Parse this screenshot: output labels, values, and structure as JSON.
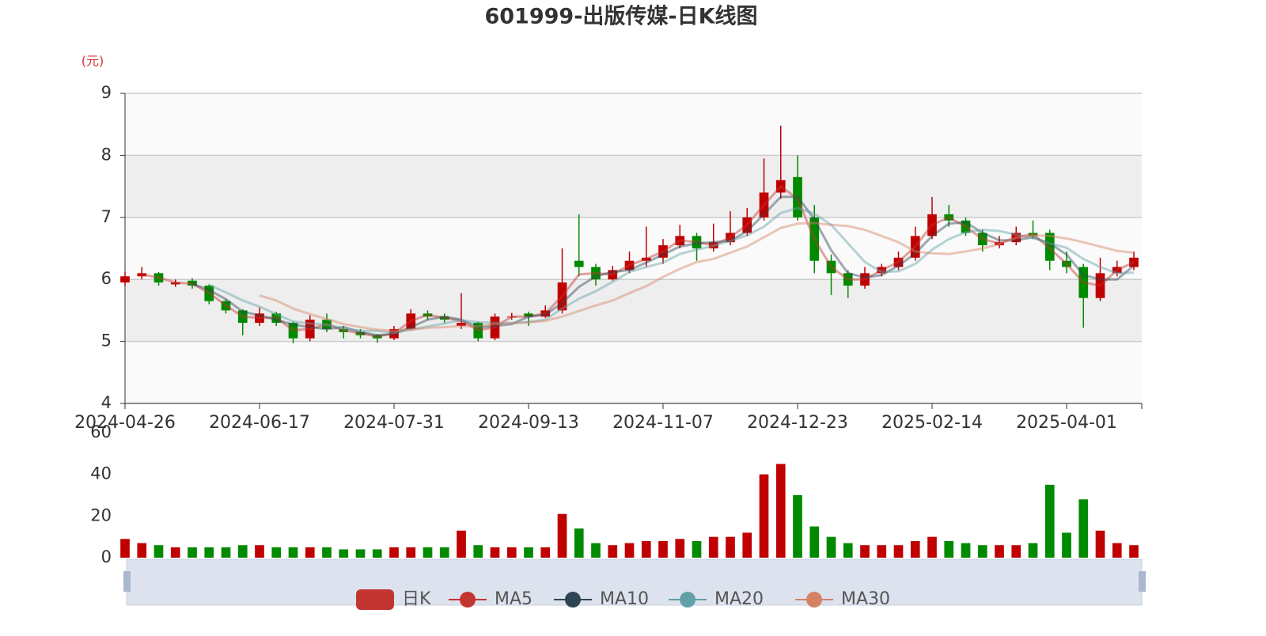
{
  "chart_data": {
    "type": "candlestick",
    "title": "601999-出版传媒-日K线图",
    "y_unit": "(元)",
    "categories": [
      "2024-04-26",
      null,
      null,
      null,
      null,
      null,
      null,
      null,
      "2024-06-17",
      null,
      null,
      null,
      null,
      null,
      null,
      null,
      "2024-07-31",
      null,
      null,
      null,
      null,
      null,
      null,
      null,
      "2024-09-13",
      null,
      null,
      null,
      null,
      null,
      null,
      null,
      "2024-11-07",
      null,
      null,
      null,
      null,
      null,
      null,
      null,
      "2024-12-23",
      null,
      null,
      null,
      null,
      null,
      null,
      null,
      "2025-02-14",
      null,
      null,
      null,
      null,
      null,
      null,
      null,
      "2025-04-01",
      null,
      null,
      null,
      null
    ],
    "ylim": [
      4,
      9
    ],
    "yticks": [
      4,
      5,
      6,
      7,
      8,
      9
    ],
    "series": [
      {
        "name": "日K",
        "type": "candlestick",
        "color": "#c23531",
        "up_color": "#c00000",
        "down_color": "#008a00",
        "values": [
          [
            5.95,
            6.05,
            5.9,
            6.12
          ],
          [
            6.05,
            6.1,
            6.0,
            6.2
          ],
          [
            6.1,
            5.95,
            5.9,
            6.12
          ],
          [
            5.92,
            5.95,
            5.88,
            6.0
          ],
          [
            5.98,
            5.9,
            5.85,
            6.02
          ],
          [
            5.9,
            5.65,
            5.6,
            5.92
          ],
          [
            5.65,
            5.5,
            5.45,
            5.68
          ],
          [
            5.5,
            5.3,
            5.1,
            5.52
          ],
          [
            5.3,
            5.45,
            5.25,
            5.55
          ],
          [
            5.45,
            5.3,
            5.25,
            5.48
          ],
          [
            5.3,
            5.05,
            4.97,
            5.32
          ],
          [
            5.05,
            5.35,
            5.0,
            5.42
          ],
          [
            5.35,
            5.2,
            5.15,
            5.45
          ],
          [
            5.2,
            5.15,
            5.05,
            5.25
          ],
          [
            5.15,
            5.1,
            5.05,
            5.2
          ],
          [
            5.1,
            5.05,
            4.98,
            5.12
          ],
          [
            5.05,
            5.2,
            5.02,
            5.25
          ],
          [
            5.2,
            5.45,
            5.18,
            5.52
          ],
          [
            5.45,
            5.4,
            5.35,
            5.5
          ],
          [
            5.4,
            5.35,
            5.3,
            5.45
          ],
          [
            5.25,
            5.3,
            5.2,
            5.78
          ],
          [
            5.3,
            5.05,
            5.0,
            5.32
          ],
          [
            5.05,
            5.4,
            5.02,
            5.45
          ],
          [
            5.4,
            5.4,
            5.35,
            5.46
          ],
          [
            5.45,
            5.4,
            5.25,
            5.48
          ],
          [
            5.4,
            5.5,
            5.38,
            5.58
          ],
          [
            5.5,
            5.95,
            5.45,
            6.5
          ],
          [
            6.3,
            6.2,
            6.05,
            7.05
          ],
          [
            6.2,
            6.0,
            5.9,
            6.25
          ],
          [
            6.0,
            6.15,
            5.98,
            6.22
          ],
          [
            6.15,
            6.3,
            6.1,
            6.45
          ],
          [
            6.3,
            6.35,
            6.2,
            6.85
          ],
          [
            6.35,
            6.55,
            6.25,
            6.65
          ],
          [
            6.55,
            6.7,
            6.5,
            6.88
          ],
          [
            6.7,
            6.5,
            6.3,
            6.75
          ],
          [
            6.5,
            6.6,
            6.45,
            6.9
          ],
          [
            6.6,
            6.75,
            6.55,
            7.1
          ],
          [
            6.75,
            7.0,
            6.7,
            7.15
          ],
          [
            7.0,
            7.4,
            6.95,
            7.95
          ],
          [
            7.4,
            7.6,
            7.3,
            8.48
          ],
          [
            7.65,
            7.0,
            6.95,
            8.0
          ],
          [
            7.0,
            6.3,
            6.1,
            7.2
          ],
          [
            6.3,
            6.1,
            5.75,
            6.4
          ],
          [
            6.1,
            5.9,
            5.7,
            6.15
          ],
          [
            5.9,
            6.1,
            5.85,
            6.2
          ],
          [
            6.1,
            6.2,
            6.05,
            6.25
          ],
          [
            6.2,
            6.35,
            6.15,
            6.45
          ],
          [
            6.35,
            6.7,
            6.3,
            6.85
          ],
          [
            6.7,
            7.05,
            6.65,
            7.33
          ],
          [
            7.05,
            6.95,
            6.85,
            7.2
          ],
          [
            6.95,
            6.75,
            6.7,
            7.0
          ],
          [
            6.75,
            6.55,
            6.45,
            6.8
          ],
          [
            6.55,
            6.6,
            6.5,
            6.7
          ],
          [
            6.6,
            6.75,
            6.55,
            6.85
          ],
          [
            6.75,
            6.7,
            6.65,
            6.95
          ],
          [
            6.75,
            6.3,
            6.15,
            6.8
          ],
          [
            6.3,
            6.2,
            6.1,
            6.45
          ],
          [
            6.2,
            5.7,
            5.22,
            6.25
          ],
          [
            5.7,
            6.1,
            5.65,
            6.35
          ],
          [
            6.1,
            6.2,
            6.05,
            6.3
          ],
          [
            6.2,
            6.35,
            6.15,
            6.45
          ]
        ]
      },
      {
        "name": "MA5",
        "type": "line",
        "color": "#c23531",
        "values": [
          null,
          6.08,
          6.03,
          5.95,
          5.93,
          5.78,
          5.58,
          5.4,
          5.38,
          5.38,
          5.18,
          5.2,
          5.28,
          5.18,
          5.13,
          5.08,
          5.13,
          5.33,
          5.43,
          5.38,
          5.33,
          5.18,
          5.23,
          5.4,
          5.4,
          5.45,
          5.73,
          6.08,
          6.1,
          6.08,
          6.23,
          6.33,
          6.45,
          6.63,
          6.6,
          6.55,
          6.68,
          6.88,
          7.2,
          7.5,
          7.3,
          6.65,
          6.2,
          6.0,
          6.0,
          6.15,
          6.28,
          6.53,
          6.88,
          7.0,
          6.85,
          6.65,
          6.58,
          6.68,
          6.73,
          6.5,
          6.25,
          5.95,
          5.9,
          6.15,
          6.28
        ]
      },
      {
        "name": "MA10",
        "type": "line",
        "color": "#2f4554",
        "values": [
          null,
          null,
          null,
          null,
          5.93,
          5.83,
          5.68,
          5.48,
          5.42,
          5.35,
          5.27,
          5.23,
          5.2,
          5.23,
          5.15,
          5.1,
          5.12,
          5.23,
          5.35,
          5.4,
          5.35,
          5.23,
          5.25,
          5.28,
          5.4,
          5.43,
          5.62,
          5.88,
          6.05,
          6.12,
          6.15,
          6.27,
          6.4,
          6.53,
          6.58,
          6.6,
          6.62,
          6.78,
          7.05,
          7.33,
          7.33,
          6.97,
          6.47,
          6.1,
          6.03,
          6.07,
          6.22,
          6.42,
          6.7,
          6.9,
          6.92,
          6.75,
          6.63,
          6.63,
          6.68,
          6.58,
          6.4,
          6.07,
          6.0,
          6.0,
          6.22
        ]
      },
      {
        "name": "MA20",
        "type": "line",
        "color": "#61a0a8",
        "values": [
          null,
          null,
          null,
          null,
          null,
          5.91,
          5.79,
          5.66,
          5.56,
          5.44,
          5.32,
          5.29,
          5.27,
          5.21,
          5.17,
          5.17,
          5.14,
          5.19,
          5.24,
          5.29,
          5.34,
          5.31,
          5.3,
          5.3,
          5.31,
          5.35,
          5.53,
          5.69,
          5.81,
          5.96,
          6.12,
          6.2,
          6.27,
          6.41,
          6.48,
          6.54,
          6.62,
          6.71,
          6.85,
          7.07,
          7.15,
          7.06,
          6.88,
          6.58,
          6.28,
          6.12,
          6.13,
          6.25,
          6.48,
          6.65,
          6.76,
          6.8,
          6.78,
          6.72,
          6.67,
          6.58,
          6.51,
          6.33,
          6.2,
          6.1,
          6.11
        ]
      },
      {
        "name": "MA30",
        "type": "line",
        "color": "#d48265",
        "values": [
          null,
          null,
          null,
          null,
          null,
          null,
          null,
          null,
          5.74,
          5.66,
          5.53,
          5.44,
          5.36,
          5.28,
          5.23,
          5.19,
          5.17,
          5.19,
          5.22,
          5.23,
          5.25,
          5.24,
          5.28,
          5.29,
          5.31,
          5.33,
          5.4,
          5.49,
          5.58,
          5.66,
          5.78,
          5.89,
          6.04,
          6.17,
          6.28,
          6.33,
          6.43,
          6.53,
          6.68,
          6.83,
          6.9,
          6.91,
          6.88,
          6.86,
          6.8,
          6.7,
          6.6,
          6.45,
          6.42,
          6.41,
          6.45,
          6.5,
          6.57,
          6.67,
          6.71,
          6.7,
          6.66,
          6.6,
          6.53,
          6.46,
          6.43
        ]
      }
    ],
    "volume": {
      "values": [
        9,
        7,
        6,
        5,
        5,
        5,
        5,
        6,
        6,
        5,
        5,
        5,
        5,
        4,
        4,
        4,
        5,
        5,
        5,
        5,
        13,
        6,
        5,
        5,
        5,
        5,
        21,
        14,
        7,
        6,
        7,
        8,
        8,
        9,
        8,
        10,
        10,
        12,
        40,
        45,
        30,
        15,
        10,
        7,
        6,
        6,
        6,
        8,
        10,
        8,
        7,
        6,
        6,
        6,
        7,
        35,
        12,
        28,
        13,
        7,
        6
      ],
      "ylim": [
        0,
        60
      ],
      "yticks": [
        0,
        20,
        40,
        60
      ]
    }
  }
}
